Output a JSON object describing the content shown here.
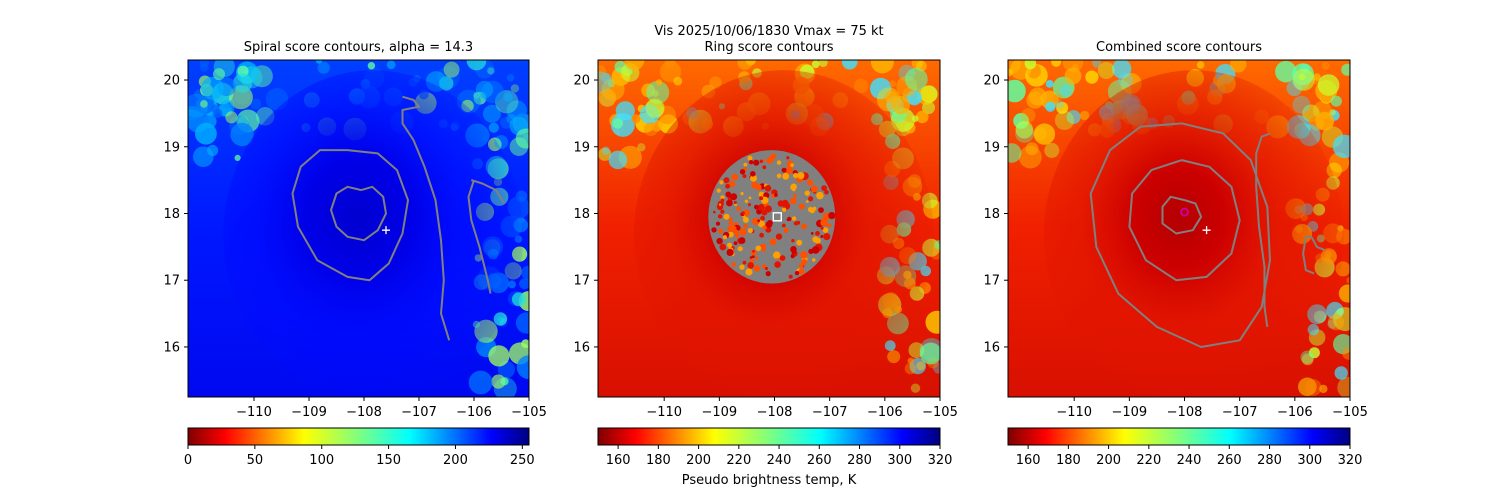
{
  "figure": {
    "suptitle_line1": "Vis  2025/10/06/1830    Vmax = 75 kt"
  },
  "chart_data": [
    {
      "type": "heatmap",
      "title": "Spiral score contours, alpha = 14.3",
      "colormap": "jet_reversed",
      "xlim": [
        -111.2,
        -105
      ],
      "ylim": [
        15.25,
        20.3
      ],
      "xticks": [
        -110,
        -109,
        -108,
        -107,
        -106,
        -105
      ],
      "xtick_labels": [
        "−110",
        "−109",
        "−108",
        "−107",
        "−106",
        "−105"
      ],
      "yticks": [
        16,
        17,
        18,
        19,
        20
      ],
      "ytick_labels": [
        "16",
        "17",
        "18",
        "19",
        "20"
      ],
      "storm_center": [
        -108.05,
        18.05
      ],
      "markers": [
        {
          "kind": "plus",
          "x": -107.6,
          "y": 17.75,
          "color": "#ffffff"
        }
      ],
      "contours": [
        [
          [
            -107.3,
            19.75
          ],
          [
            -107.1,
            19.7
          ],
          [
            -107.0,
            19.6
          ],
          [
            -107.3,
            19.55
          ],
          [
            -107.3,
            19.35
          ],
          [
            -107.1,
            19.1
          ],
          [
            -106.9,
            18.7
          ],
          [
            -106.7,
            18.2
          ],
          [
            -106.6,
            17.6
          ],
          [
            -106.55,
            17.0
          ],
          [
            -106.6,
            16.5
          ],
          [
            -106.45,
            16.1
          ]
        ],
        [
          [
            -108.05,
            18.35
          ],
          [
            -108.3,
            18.4
          ],
          [
            -108.5,
            18.3
          ],
          [
            -108.6,
            18.05
          ],
          [
            -108.5,
            17.8
          ],
          [
            -108.3,
            17.65
          ],
          [
            -108.0,
            17.6
          ],
          [
            -107.75,
            17.75
          ],
          [
            -107.6,
            18.0
          ],
          [
            -107.65,
            18.25
          ],
          [
            -107.85,
            18.4
          ],
          [
            -108.05,
            18.35
          ]
        ],
        [
          [
            -108.3,
            18.95
          ],
          [
            -108.8,
            18.95
          ],
          [
            -109.15,
            18.7
          ],
          [
            -109.3,
            18.3
          ],
          [
            -109.2,
            17.8
          ],
          [
            -108.85,
            17.3
          ],
          [
            -108.3,
            17.05
          ],
          [
            -107.9,
            17.0
          ],
          [
            -107.55,
            17.25
          ],
          [
            -107.3,
            17.7
          ],
          [
            -107.2,
            18.2
          ],
          [
            -107.4,
            18.65
          ],
          [
            -107.75,
            18.9
          ],
          [
            -108.3,
            18.95
          ]
        ],
        [
          [
            -106.0,
            18.5
          ],
          [
            -106.1,
            18.25
          ],
          [
            -106.05,
            17.9
          ],
          [
            -105.9,
            17.5
          ],
          [
            -105.75,
            17.0
          ],
          [
            -105.7,
            16.8
          ]
        ],
        [
          [
            -106.05,
            18.5
          ],
          [
            -105.85,
            18.45
          ],
          [
            -105.6,
            18.35
          ],
          [
            -105.45,
            18.15
          ]
        ]
      ],
      "colorbar": {
        "min": 0,
        "max": 255,
        "ticks": [
          0,
          50,
          100,
          150,
          200,
          250
        ],
        "tick_labels": [
          "0",
          "50",
          "100",
          "150",
          "200",
          "250"
        ],
        "label": ""
      }
    },
    {
      "type": "heatmap",
      "title": "Ring score contours",
      "colormap": "jet_reversed",
      "xlim": [
        -111.2,
        -105
      ],
      "ylim": [
        15.25,
        20.3
      ],
      "xticks": [
        -110,
        -109,
        -108,
        -107,
        -106,
        -105
      ],
      "xtick_labels": [
        "−110",
        "−109",
        "−108",
        "−107",
        "−106",
        "−105"
      ],
      "yticks": [
        16,
        17,
        18,
        19,
        20
      ],
      "ytick_labels": [
        "16",
        "17",
        "18",
        "19",
        "20"
      ],
      "storm_center": [
        -108.05,
        18.05
      ],
      "ring_region": {
        "cx": -108.05,
        "cy": 17.95,
        "rx": 1.15,
        "ry": 1.0
      },
      "markers": [
        {
          "kind": "square",
          "x": -107.95,
          "y": 17.95,
          "color": "#ffffff"
        }
      ],
      "colorbar": {
        "min": 150,
        "max": 320,
        "ticks": [
          160,
          180,
          200,
          220,
          240,
          260,
          280,
          300,
          320
        ],
        "tick_labels": [
          "160",
          "180",
          "200",
          "220",
          "240",
          "260",
          "280",
          "300",
          "320"
        ],
        "label": "Pseudo brightness temp, K"
      }
    },
    {
      "type": "heatmap",
      "title": "Combined score contours",
      "colormap": "jet_reversed",
      "xlim": [
        -111.2,
        -105
      ],
      "ylim": [
        15.25,
        20.3
      ],
      "xticks": [
        -110,
        -109,
        -108,
        -107,
        -106,
        -105
      ],
      "xtick_labels": [
        "−110",
        "−109",
        "−108",
        "−107",
        "−106",
        "−105"
      ],
      "yticks": [
        16,
        17,
        18,
        19,
        20
      ],
      "ytick_labels": [
        "16",
        "17",
        "18",
        "19",
        "20"
      ],
      "storm_center": [
        -108.05,
        18.05
      ],
      "markers": [
        {
          "kind": "plus",
          "x": -107.6,
          "y": 17.75,
          "color": "#ffffff"
        },
        {
          "kind": "circle",
          "x": -108.0,
          "y": 18.02,
          "color": "#cc00aa"
        }
      ],
      "contours": [
        [
          [
            -108.0,
            18.2
          ],
          [
            -108.25,
            18.25
          ],
          [
            -108.4,
            18.1
          ],
          [
            -108.4,
            17.85
          ],
          [
            -108.15,
            17.7
          ],
          [
            -107.85,
            17.75
          ],
          [
            -107.7,
            17.95
          ],
          [
            -107.8,
            18.15
          ],
          [
            -108.0,
            18.2
          ]
        ],
        [
          [
            -108.05,
            18.8
          ],
          [
            -108.6,
            18.65
          ],
          [
            -108.95,
            18.3
          ],
          [
            -109.0,
            17.8
          ],
          [
            -108.7,
            17.3
          ],
          [
            -108.15,
            17.0
          ],
          [
            -107.6,
            17.05
          ],
          [
            -107.15,
            17.4
          ],
          [
            -107.0,
            17.9
          ],
          [
            -107.15,
            18.4
          ],
          [
            -107.55,
            18.7
          ],
          [
            -108.05,
            18.8
          ]
        ],
        [
          [
            -108.05,
            19.35
          ],
          [
            -108.8,
            19.3
          ],
          [
            -109.35,
            18.95
          ],
          [
            -109.7,
            18.3
          ],
          [
            -109.6,
            17.5
          ],
          [
            -109.2,
            16.8
          ],
          [
            -108.5,
            16.3
          ],
          [
            -107.7,
            16.0
          ],
          [
            -107.0,
            16.1
          ],
          [
            -106.6,
            16.6
          ],
          [
            -106.45,
            17.3
          ],
          [
            -106.5,
            18.1
          ],
          [
            -106.8,
            18.8
          ],
          [
            -107.3,
            19.2
          ],
          [
            -108.05,
            19.35
          ]
        ],
        [
          [
            -106.45,
            19.2
          ],
          [
            -106.6,
            19.15
          ],
          [
            -106.7,
            18.9
          ],
          [
            -106.7,
            18.4
          ],
          [
            -106.65,
            17.8
          ],
          [
            -106.55,
            17.2
          ],
          [
            -106.55,
            16.6
          ],
          [
            -106.5,
            16.3
          ]
        ],
        [
          [
            -105.8,
            17.65
          ],
          [
            -105.7,
            17.65
          ],
          [
            -105.6,
            17.5
          ],
          [
            -105.45,
            17.45
          ]
        ],
        [
          [
            -105.8,
            17.65
          ],
          [
            -105.85,
            17.4
          ],
          [
            -105.8,
            17.15
          ],
          [
            -105.65,
            17.1
          ]
        ]
      ],
      "colorbar": {
        "min": 150,
        "max": 320,
        "ticks": [
          160,
          180,
          200,
          220,
          240,
          260,
          280,
          300,
          320
        ],
        "tick_labels": [
          "160",
          "180",
          "200",
          "220",
          "240",
          "260",
          "280",
          "300",
          "320"
        ],
        "label": ""
      }
    }
  ]
}
